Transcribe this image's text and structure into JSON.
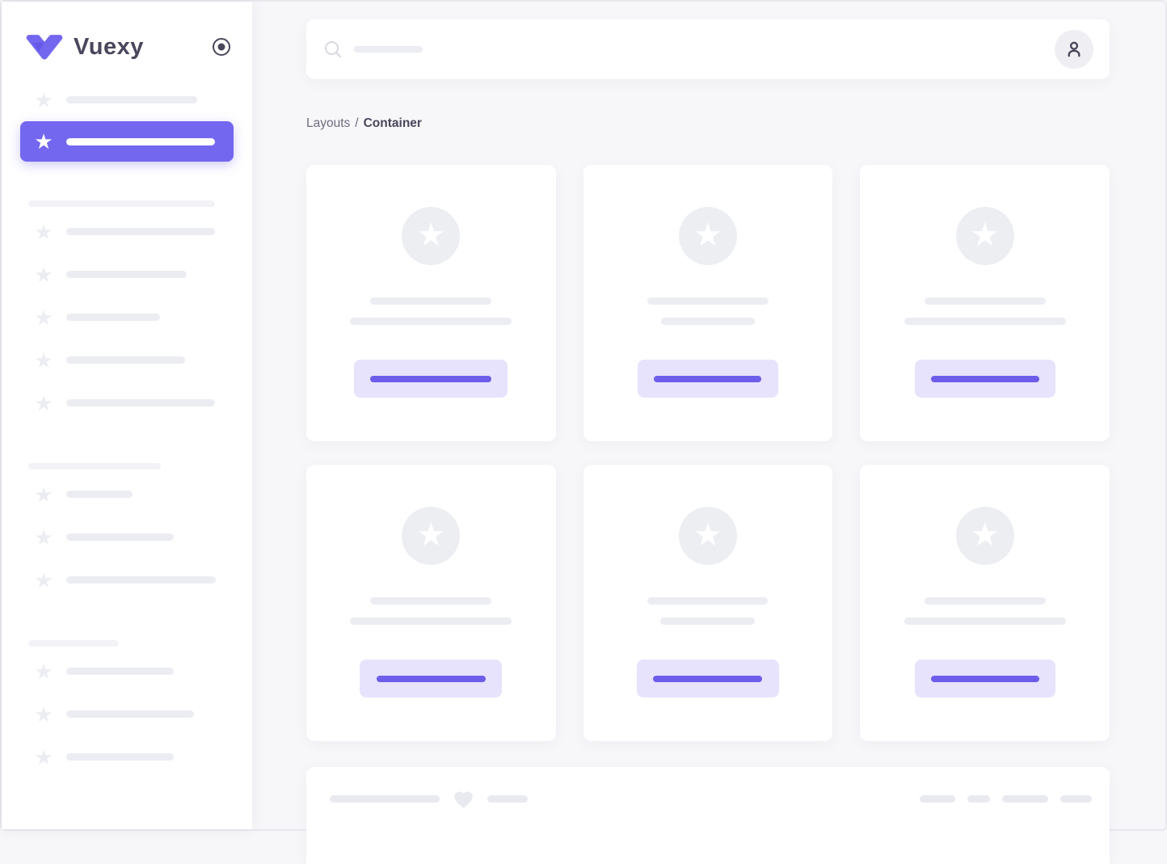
{
  "app": {
    "title": "Vuexy"
  },
  "colors": {
    "primary": "#7367F0",
    "primary_dark": "#5A4EE3",
    "button_bg": "#E7E3FC",
    "button_bar": "#6D5DEA",
    "skeleton": "#ECEDF2",
    "skeleton_light": "#F3F3F7",
    "main_bg": "#F7F7FA",
    "text_dark": "#4B465C",
    "text_gray": "#6F6B7D"
  },
  "icons": {
    "logo": "vuexy-chevron",
    "pin_toggle": "radio-circle",
    "search": "magnifier",
    "avatar": "person",
    "menu_item": "star",
    "card_media": "star",
    "footer": "heart",
    "star_glyph": "★"
  },
  "sidebar": {
    "logo_text": "Vuexy",
    "top_item_bar_w": 162,
    "active_item_bar_w": 184,
    "sections": [
      {
        "head_w": 231,
        "item_bar_widths": [
          184,
          149,
          116,
          147,
          184
        ]
      },
      {
        "head_w": 164,
        "item_bar_widths": [
          82,
          133,
          185
        ]
      },
      {
        "head_w": 112,
        "item_bar_widths": [
          133,
          158,
          133
        ]
      }
    ]
  },
  "header": {
    "search_placeholder_bar_w": 85
  },
  "breadcrumb": {
    "parent": "Layouts",
    "separator": "/",
    "current": "Container"
  },
  "cards": [
    {
      "line1_w": 150,
      "line2_w": 200,
      "button_w": 190,
      "button_bar_w": 150
    },
    {
      "line1_w": 150,
      "line2_w": 116,
      "button_w": 174,
      "button_bar_w": 133
    },
    {
      "line1_w": 150,
      "line2_w": 200,
      "button_w": 174,
      "button_bar_w": 134
    },
    {
      "line1_w": 150,
      "line2_w": 200,
      "button_w": 176,
      "button_bar_w": 135
    },
    {
      "line1_w": 149,
      "line2_w": 117,
      "button_w": 176,
      "button_bar_w": 135
    },
    {
      "line1_w": 150,
      "line2_w": 200,
      "button_w": 174,
      "button_bar_w": 134
    }
  ],
  "footer": {
    "left_bars": [
      136,
      50
    ],
    "right_bars": [
      44,
      28,
      57,
      39
    ]
  }
}
